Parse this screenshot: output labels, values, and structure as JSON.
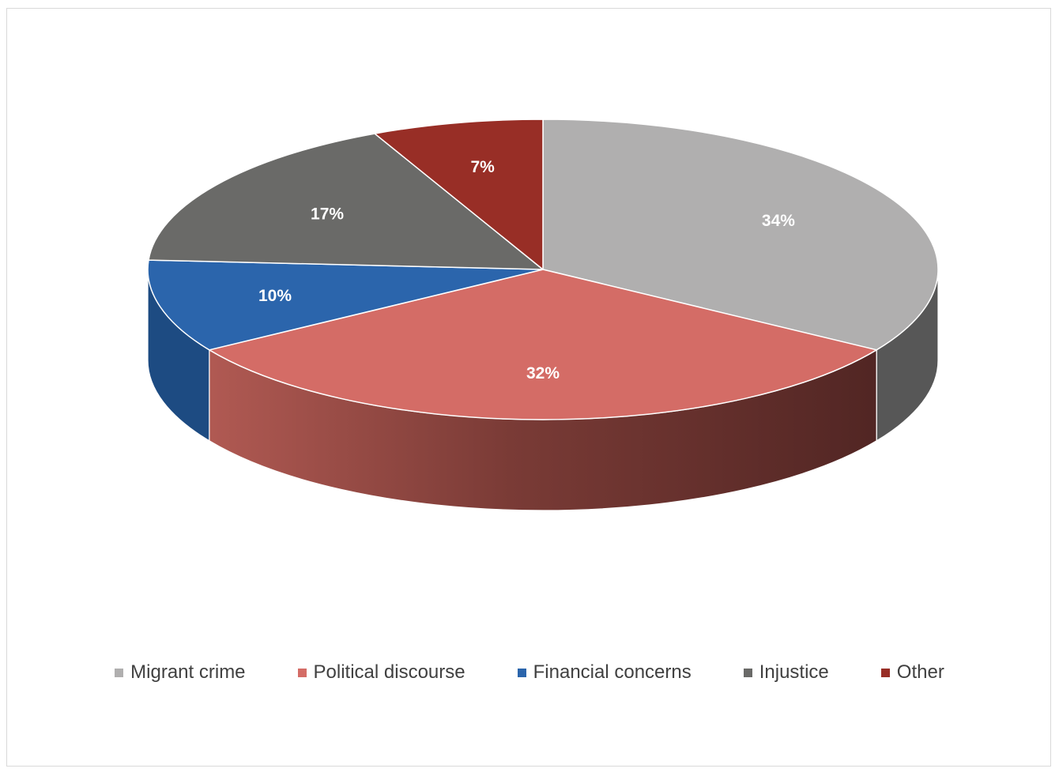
{
  "chart_data": {
    "type": "pie",
    "variant": "3d",
    "title": "",
    "unit": "%",
    "categories": [
      "Migrant crime",
      "Political discourse",
      "Financial concerns",
      "Injustice",
      "Other"
    ],
    "values": [
      34,
      32,
      10,
      17,
      7
    ],
    "labels": [
      "34%",
      "32%",
      "10%",
      "17%",
      "7%"
    ],
    "colors": [
      "#b0afaf",
      "#d46c66",
      "#2b65ac",
      "#6a6a68",
      "#982e26"
    ],
    "side_colors": [
      "#575757",
      "#8e403b",
      "#1d4b82",
      "#3f3f3f",
      "#6a1f1a"
    ],
    "start_angle_deg": 90,
    "direction": "clockwise",
    "legend": {
      "position": "bottom",
      "items": [
        "Migrant crime",
        "Political discourse",
        "Financial concerns",
        "Injustice",
        "Other"
      ]
    }
  }
}
